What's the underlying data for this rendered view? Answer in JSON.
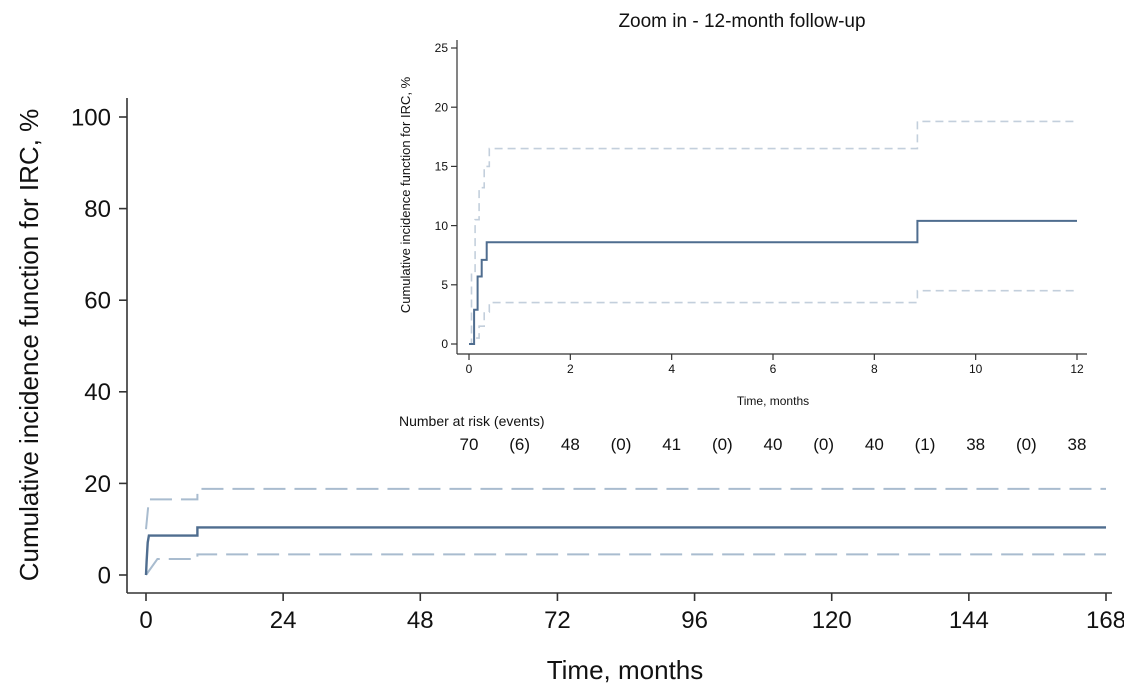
{
  "chart_data": [
    {
      "id": "main",
      "type": "line",
      "xlabel": "Time, months",
      "ylabel": "Cumulative incidence function for IRC, %",
      "xlim": [
        0,
        168
      ],
      "ylim": [
        0,
        100
      ],
      "xticks": [
        0,
        24,
        48,
        72,
        96,
        120,
        144,
        168
      ],
      "yticks": [
        0,
        20,
        40,
        60,
        80,
        100
      ],
      "grid": false,
      "series": [
        {
          "role": "estimate",
          "style": "solid",
          "color": "#4f6d8f",
          "x": [
            0,
            0.1,
            0.3,
            0.5,
            9,
            9,
            168
          ],
          "y": [
            0,
            2.9,
            7.1,
            8.6,
            8.6,
            10.4,
            10.4
          ]
        },
        {
          "role": "upper",
          "style": "dashed",
          "color": "#a9bccf",
          "x": [
            0,
            0.5,
            9,
            9,
            168
          ],
          "y": [
            10,
            16.5,
            16.5,
            18.8,
            18.8
          ]
        },
        {
          "role": "lower",
          "style": "dashed",
          "color": "#a9bccf",
          "x": [
            0,
            2,
            9,
            9,
            168
          ],
          "y": [
            0,
            3.5,
            3.5,
            4.5,
            4.5
          ]
        }
      ]
    },
    {
      "id": "inset",
      "type": "line",
      "title": "Zoom in - 12-month follow-up",
      "xlabel": "Time, months",
      "ylabel": "Cumulative incidence function for IRC, %",
      "xlim": [
        0,
        12
      ],
      "ylim": [
        0,
        25
      ],
      "xticks": [
        0,
        2,
        4,
        6,
        8,
        10,
        12
      ],
      "yticks": [
        0,
        5,
        10,
        15,
        20,
        25
      ],
      "grid": false,
      "series": [
        {
          "role": "estimate",
          "style": "solid",
          "color": "#4f6d8f",
          "x": [
            0,
            0.1,
            0.1,
            0.17,
            0.17,
            0.25,
            0.25,
            0.35,
            0.35,
            8.85,
            8.85,
            12
          ],
          "y": [
            0,
            0,
            2.9,
            2.9,
            5.7,
            5.7,
            7.1,
            7.1,
            8.6,
            8.6,
            10.4,
            10.4
          ]
        },
        {
          "role": "upper",
          "style": "dashed",
          "color": "#c3cfdc",
          "x": [
            0,
            0.05,
            0.05,
            0.12,
            0.12,
            0.2,
            0.2,
            0.3,
            0.3,
            0.4,
            0.4,
            8.85,
            8.85,
            12
          ],
          "y": [
            0,
            0,
            6,
            6,
            10.5,
            10.5,
            13.2,
            13.2,
            15,
            15,
            16.5,
            16.5,
            18.8,
            18.8
          ]
        },
        {
          "role": "lower",
          "style": "dashed",
          "color": "#c3cfdc",
          "x": [
            0,
            0.1,
            0.1,
            0.2,
            0.2,
            0.3,
            0.3,
            0.4,
            0.4,
            8.85,
            8.85,
            12
          ],
          "y": [
            0,
            0,
            0.5,
            0.5,
            1.5,
            1.5,
            2.7,
            2.7,
            3.5,
            3.5,
            4.5,
            4.5
          ]
        }
      ],
      "risk_table": {
        "label": "Number at risk (events)",
        "at_risk": [
          {
            "month": 0,
            "n": "70"
          },
          {
            "month": 2,
            "n": "48"
          },
          {
            "month": 4,
            "n": "41"
          },
          {
            "month": 6,
            "n": "40"
          },
          {
            "month": 8,
            "n": "40"
          },
          {
            "month": 10,
            "n": "38"
          },
          {
            "month": 12,
            "n": "38"
          }
        ],
        "events": [
          "(6)",
          "(0)",
          "(0)",
          "(0)",
          "(1)",
          "(0)"
        ]
      }
    }
  ]
}
